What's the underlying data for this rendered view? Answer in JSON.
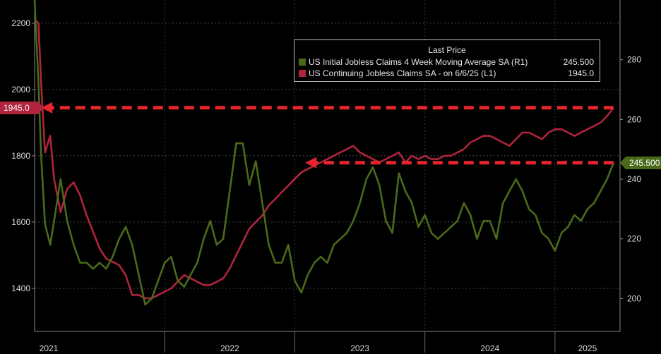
{
  "chart_data": {
    "type": "line",
    "title": "",
    "xlabel": "",
    "x_ticks": [
      "2021",
      "2022",
      "2023",
      "2024",
      "2025"
    ],
    "x_range": [
      2021.0,
      2025.5
    ],
    "left_axis": {
      "ticks": [
        1400,
        1600,
        1800,
        2000,
        2200
      ],
      "ylim": [
        1270,
        2270
      ]
    },
    "right_axis": {
      "ticks": [
        200,
        220,
        240,
        260,
        280
      ],
      "ylim": [
        189,
        300
      ]
    },
    "legend": {
      "title": "Last Price",
      "placement": "top-right",
      "entries": [
        {
          "name": "US Initial Jobless Claims 4 Week Moving Average SA  (R1)",
          "value": "245.500",
          "color": "#4a6a1a"
        },
        {
          "name": "US Continuing Jobless Claims SA -  on 6/6/25  (L1)",
          "value": "1945.0",
          "color": "#b0243d"
        }
      ]
    },
    "last_value_labels": {
      "left": "1945.0",
      "right": "245.500"
    },
    "series": [
      {
        "name": "US Continuing Jobless Claims SA -  on 6/6/25  (L1)",
        "axis": "left",
        "color": "#b0243d",
        "x": [
          2021.0,
          2021.03,
          2021.05,
          2021.08,
          2021.12,
          2021.15,
          2021.2,
          2021.25,
          2021.3,
          2021.35,
          2021.4,
          2021.45,
          2021.5,
          2021.55,
          2021.6,
          2021.65,
          2021.7,
          2021.75,
          2021.8,
          2021.85,
          2021.9,
          2021.95,
          2022.0,
          2022.05,
          2022.1,
          2022.15,
          2022.2,
          2022.25,
          2022.3,
          2022.35,
          2022.4,
          2022.45,
          2022.5,
          2022.55,
          2022.6,
          2022.65,
          2022.7,
          2022.75,
          2022.8,
          2022.85,
          2022.9,
          2022.95,
          2023.0,
          2023.05,
          2023.1,
          2023.15,
          2023.2,
          2023.25,
          2023.3,
          2023.35,
          2023.4,
          2023.45,
          2023.5,
          2023.55,
          2023.6,
          2023.65,
          2023.7,
          2023.75,
          2023.8,
          2023.85,
          2023.9,
          2023.95,
          2024.0,
          2024.05,
          2024.1,
          2024.15,
          2024.2,
          2024.25,
          2024.3,
          2024.35,
          2024.4,
          2024.45,
          2024.5,
          2024.55,
          2024.6,
          2024.65,
          2024.7,
          2024.75,
          2024.8,
          2024.85,
          2024.9,
          2024.95,
          2025.0,
          2025.05,
          2025.1,
          2025.15,
          2025.2,
          2025.25,
          2025.3,
          2025.35,
          2025.4,
          2025.45
        ],
        "values": [
          2210,
          2200,
          2020,
          1810,
          1860,
          1730,
          1630,
          1700,
          1720,
          1680,
          1620,
          1570,
          1520,
          1490,
          1480,
          1470,
          1440,
          1380,
          1380,
          1370,
          1370,
          1380,
          1390,
          1400,
          1420,
          1440,
          1430,
          1420,
          1410,
          1410,
          1420,
          1430,
          1460,
          1500,
          1540,
          1580,
          1600,
          1620,
          1650,
          1670,
          1690,
          1710,
          1730,
          1750,
          1760,
          1770,
          1780,
          1790,
          1800,
          1810,
          1820,
          1830,
          1810,
          1800,
          1790,
          1780,
          1790,
          1800,
          1810,
          1780,
          1800,
          1790,
          1800,
          1790,
          1790,
          1800,
          1800,
          1810,
          1820,
          1840,
          1850,
          1860,
          1860,
          1850,
          1840,
          1830,
          1850,
          1870,
          1870,
          1860,
          1850,
          1870,
          1880,
          1880,
          1870,
          1860,
          1870,
          1880,
          1890,
          1900,
          1920,
          1945
        ]
      },
      {
        "name": "US Initial Jobless Claims 4 Week Moving Average SA  (R1)",
        "axis": "right",
        "color": "#4a6a1a",
        "x": [
          2021.0,
          2021.03,
          2021.05,
          2021.08,
          2021.12,
          2021.15,
          2021.2,
          2021.25,
          2021.3,
          2021.35,
          2021.4,
          2021.45,
          2021.5,
          2021.55,
          2021.6,
          2021.65,
          2021.7,
          2021.75,
          2021.8,
          2021.85,
          2021.9,
          2021.95,
          2022.0,
          2022.05,
          2022.1,
          2022.15,
          2022.2,
          2022.25,
          2022.3,
          2022.35,
          2022.4,
          2022.45,
          2022.5,
          2022.55,
          2022.6,
          2022.65,
          2022.7,
          2022.75,
          2022.8,
          2022.85,
          2022.9,
          2022.95,
          2023.0,
          2023.05,
          2023.1,
          2023.15,
          2023.2,
          2023.25,
          2023.3,
          2023.35,
          2023.4,
          2023.45,
          2023.5,
          2023.55,
          2023.6,
          2023.65,
          2023.7,
          2023.75,
          2023.8,
          2023.85,
          2023.9,
          2023.95,
          2024.0,
          2024.05,
          2024.1,
          2024.15,
          2024.2,
          2024.25,
          2024.3,
          2024.35,
          2024.4,
          2024.45,
          2024.5,
          2024.55,
          2024.6,
          2024.65,
          2024.7,
          2024.75,
          2024.8,
          2024.85,
          2024.9,
          2024.95,
          2025.0,
          2025.05,
          2025.1,
          2025.15,
          2025.2,
          2025.25,
          2025.3,
          2025.35,
          2025.4,
          2025.45
        ],
        "values": [
          300,
          272,
          248,
          225,
          218,
          226,
          240,
          226,
          218,
          212,
          212,
          210,
          212,
          210,
          214,
          220,
          224,
          218,
          208,
          198,
          200,
          206,
          212,
          214,
          206,
          204,
          208,
          212,
          220,
          226,
          218,
          220,
          236,
          252,
          252,
          238,
          246,
          232,
          218,
          212,
          212,
          218,
          206,
          202,
          208,
          212,
          214,
          212,
          218,
          220,
          222,
          226,
          232,
          240,
          244,
          238,
          226,
          222,
          242,
          236,
          232,
          224,
          228,
          222,
          220,
          222,
          224,
          226,
          232,
          228,
          220,
          226,
          226,
          220,
          232,
          236,
          240,
          236,
          230,
          228,
          222,
          220,
          216,
          222,
          224,
          228,
          226,
          230,
          232,
          236,
          240,
          245.5
        ]
      }
    ],
    "annotations": [
      {
        "type": "dashed-arrow",
        "color": "#e8252e",
        "axis": "left",
        "level": 1945,
        "from_x": 2025.45,
        "to_x": 2021.05
      },
      {
        "type": "dashed-arrow",
        "color": "#e8252e",
        "axis": "right",
        "level": 245.5,
        "from_x": 2025.45,
        "to_x": 2023.08
      }
    ]
  }
}
